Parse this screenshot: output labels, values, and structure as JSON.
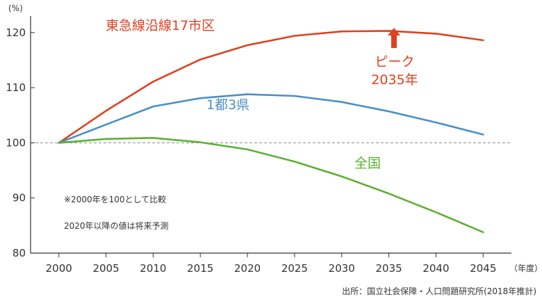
{
  "chart_data": {
    "type": "line",
    "y_unit": "(%)",
    "x_unit": "（年度）",
    "x": [
      2000,
      2005,
      2010,
      2015,
      2020,
      2025,
      2030,
      2035,
      2040,
      2045
    ],
    "xlim": [
      1997,
      2048
    ],
    "ylim": [
      80,
      123
    ],
    "yticks": [
      80,
      90,
      100,
      110,
      120
    ],
    "reference_line": 100,
    "series": [
      {
        "name": "東急線沿線17市区",
        "color": "#e04020",
        "values": [
          100,
          105.8,
          111.1,
          115.1,
          117.7,
          119.4,
          120.2,
          120.3,
          119.8,
          118.6
        ]
      },
      {
        "name": "1都3県",
        "color": "#4a90c4",
        "values": [
          100,
          103.3,
          106.6,
          108.1,
          108.8,
          108.5,
          107.4,
          105.7,
          103.7,
          101.5
        ]
      },
      {
        "name": "全国",
        "color": "#5cb032",
        "values": [
          100,
          100.7,
          100.9,
          100.1,
          98.8,
          96.6,
          93.9,
          90.8,
          87.4,
          83.8
        ]
      }
    ],
    "peak": {
      "x": 2035,
      "label_line1": "ピーク",
      "label_line2": "2035年",
      "color": "#e04020"
    },
    "notes": [
      "※2000年を100として比較",
      "2020年以降の値は将来予測"
    ],
    "source": "出所：国立社会保障・人口問題研究所(2018年推計)"
  }
}
